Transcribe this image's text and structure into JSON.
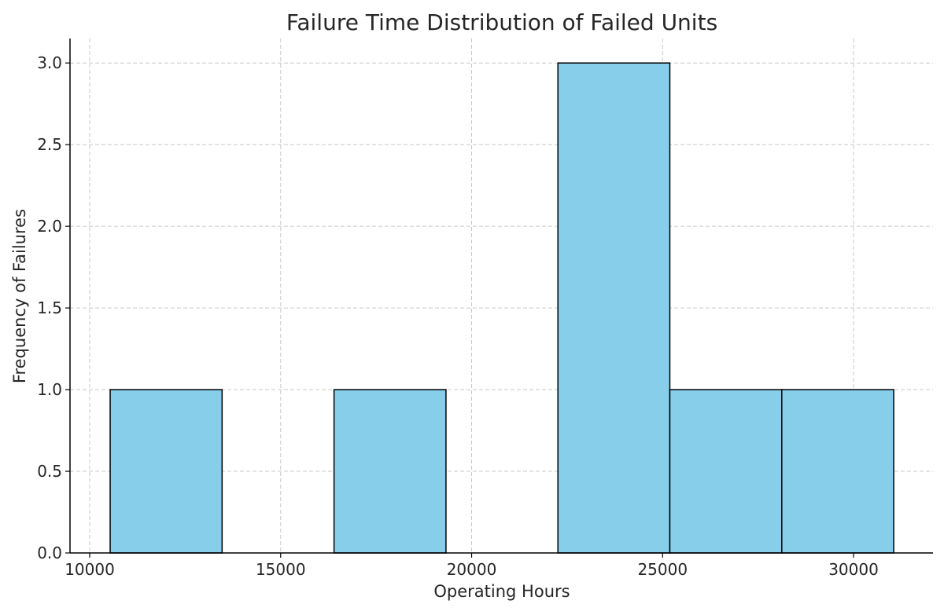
{
  "chart_data": {
    "type": "bar",
    "title": "Failure Time Distribution of Failed Units",
    "xlabel": "Operating Hours",
    "ylabel": "Frequency of Failures",
    "bin_edges": [
      10536,
      13467,
      16398,
      19329,
      22260,
      25190,
      28121,
      31052
    ],
    "values": [
      1,
      0,
      1,
      0,
      3,
      1,
      1
    ],
    "xlim": [
      9485,
      32080
    ],
    "ylim": [
      0,
      3.15
    ],
    "xticks": [
      10000,
      15000,
      20000,
      25000,
      30000
    ],
    "xtick_labels": [
      "10000",
      "15000",
      "20000",
      "25000",
      "30000"
    ],
    "yticks": [
      0,
      0.5,
      1,
      1.5,
      2,
      2.5,
      3
    ],
    "ytick_labels": [
      "0.0",
      "0.5",
      "1.0",
      "1.5",
      "2.0",
      "2.5",
      "3.0"
    ],
    "grid": true,
    "bar_color": "#87ceeb",
    "edge_color": "#000000"
  }
}
